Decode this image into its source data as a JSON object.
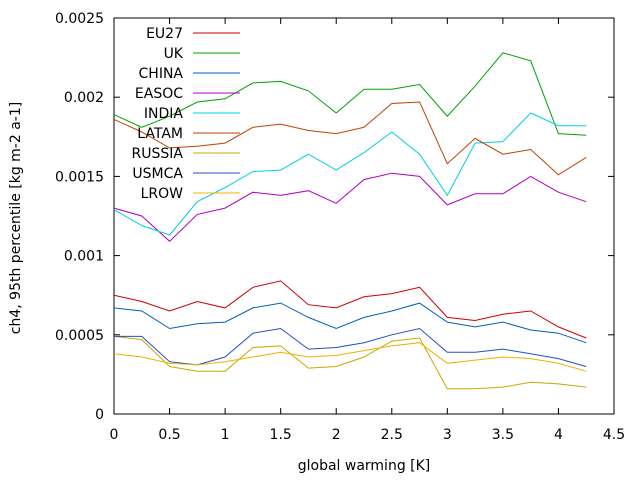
{
  "chart_data": {
    "type": "line",
    "xlabel": "global warming [K]",
    "ylabel": "ch4, 95th percentile [kg m-2 a-1]",
    "xlim": [
      0,
      4.5
    ],
    "ylim": [
      0,
      0.0025
    ],
    "xticks": [
      0,
      0.5,
      1,
      1.5,
      2,
      2.5,
      3,
      3.5,
      4,
      4.5
    ],
    "xtick_labels": [
      "0",
      "0.5",
      "1",
      "1.5",
      "2",
      "2.5",
      "3",
      "3.5",
      "4",
      "4.5"
    ],
    "yticks": [
      0,
      0.0005,
      0.001,
      0.0015,
      0.002,
      0.0025
    ],
    "ytick_labels": [
      "0",
      "0.0005",
      "0.001",
      "0.0015",
      "0.002",
      "0.0025"
    ],
    "grid": false,
    "legend_position": "top-left",
    "x": [
      0,
      0.25,
      0.5,
      0.75,
      1,
      1.25,
      1.5,
      1.75,
      2,
      2.25,
      2.5,
      2.75,
      3,
      3.25,
      3.5,
      3.75,
      4,
      4.25
    ],
    "series": [
      {
        "name": "EU27",
        "color": "#cc0000",
        "values": [
          0.00075,
          0.00071,
          0.00065,
          0.00071,
          0.00067,
          0.0008,
          0.00084,
          0.00069,
          0.00067,
          0.00074,
          0.00076,
          0.0008,
          0.00061,
          0.00059,
          0.00063,
          0.00065,
          0.00055,
          0.00048
        ]
      },
      {
        "name": "UK",
        "color": "#00a000",
        "values": [
          0.00189,
          0.00181,
          0.00188,
          0.00197,
          0.00199,
          0.00209,
          0.0021,
          0.00204,
          0.0019,
          0.00205,
          0.00205,
          0.00208,
          0.00188,
          0.00207,
          0.00228,
          0.00223,
          0.00177,
          0.00176
        ]
      },
      {
        "name": "CHINA",
        "color": "#0060c0",
        "values": [
          0.00067,
          0.00065,
          0.00054,
          0.00057,
          0.00058,
          0.00067,
          0.0007,
          0.00061,
          0.00054,
          0.00061,
          0.00065,
          0.0007,
          0.00058,
          0.00055,
          0.00058,
          0.00053,
          0.00051,
          0.00045
        ]
      },
      {
        "name": "EASOC",
        "color": "#b000c0",
        "values": [
          0.0013,
          0.00125,
          0.00109,
          0.00126,
          0.0013,
          0.0014,
          0.00138,
          0.00141,
          0.00133,
          0.00148,
          0.00152,
          0.0015,
          0.00132,
          0.00139,
          0.00139,
          0.0015,
          0.0014,
          0.00134
        ]
      },
      {
        "name": "INDIA",
        "color": "#00d0e0",
        "values": [
          0.00129,
          0.00119,
          0.00113,
          0.00134,
          0.00143,
          0.00153,
          0.00154,
          0.00164,
          0.00154,
          0.00165,
          0.00178,
          0.00164,
          0.00138,
          0.00171,
          0.00172,
          0.0019,
          0.00182,
          0.00182
        ]
      },
      {
        "name": "LATAM",
        "color": "#c04000",
        "values": [
          0.00186,
          0.00178,
          0.00168,
          0.00169,
          0.00171,
          0.00181,
          0.00183,
          0.00179,
          0.00177,
          0.00181,
          0.00196,
          0.00197,
          0.00158,
          0.00174,
          0.00164,
          0.00167,
          0.00151,
          0.00162
        ]
      },
      {
        "name": "RUSSIA",
        "color": "#c8a800",
        "values": [
          0.00049,
          0.00047,
          0.0003,
          0.00027,
          0.00027,
          0.00042,
          0.00043,
          0.00029,
          0.0003,
          0.00036,
          0.00046,
          0.00048,
          0.00016,
          0.00016,
          0.00017,
          0.0002,
          0.00019,
          0.00017
        ]
      },
      {
        "name": "USMCA",
        "color": "#2050c0",
        "values": [
          0.00049,
          0.00049,
          0.00033,
          0.00031,
          0.00036,
          0.00051,
          0.00054,
          0.00041,
          0.00042,
          0.00045,
          0.0005,
          0.00054,
          0.00039,
          0.00039,
          0.00041,
          0.00038,
          0.00035,
          0.0003
        ]
      },
      {
        "name": "LROW",
        "color": "#f0b000",
        "values": [
          0.00038,
          0.00036,
          0.00032,
          0.00031,
          0.00033,
          0.00036,
          0.00039,
          0.00036,
          0.00037,
          0.0004,
          0.00043,
          0.00045,
          0.00032,
          0.00034,
          0.00036,
          0.00035,
          0.00032,
          0.00027
        ]
      }
    ]
  }
}
